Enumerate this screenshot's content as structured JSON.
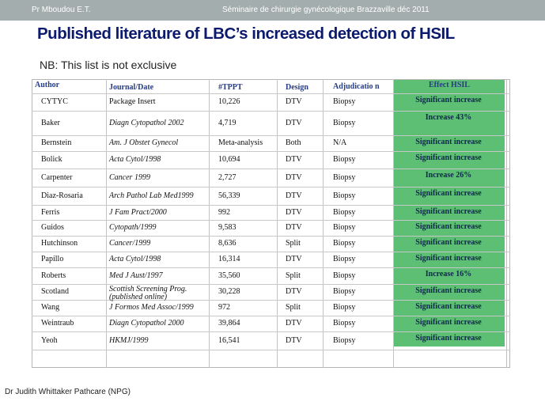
{
  "header": {
    "author": "Pr Mboudou  E.T.",
    "seminar": "Séminaire de chirurgie gynécologique Brazzaville déc 2011"
  },
  "title": "Published literature of LBC’s increased detection of HSIL",
  "note": "NB: This list is not exclusive",
  "footer": "Dr Judith Whittaker Pathcare (NPG)",
  "colors": {
    "header_bar": "#a4adad",
    "title": "#0c1a6e",
    "effect_column": "#5dbf73"
  },
  "table": {
    "headers": {
      "author": "Author",
      "journal": "Journal/Date",
      "tppt": "#TPPT",
      "design": "Design",
      "adjudication": "Adjudicatio n",
      "effect": "Effect HSIL"
    },
    "rows": [
      {
        "author": "CYTYC",
        "journal": "Package Insert",
        "tppt": "10,226",
        "design": "DTV",
        "adj": "Biopsy",
        "effect": "Significant   increase"
      },
      {
        "author": "Baker",
        "journal": "Diagn Cytopathol 2002",
        "tppt": "4,719",
        "design": "DTV",
        "adj": "Biopsy",
        "effect": "Increase 43%"
      },
      {
        "author": "Bernstein",
        "journal": "Am. J Obstet Gynecol",
        "tppt": "Meta-analysis",
        "design": "Both",
        "adj": "N/A",
        "effect": "Significant   increase"
      },
      {
        "author": "Bolick",
        "journal": "Acta Cytol/1998",
        "tppt": "10,694",
        "design": "DTV",
        "adj": "Biopsy",
        "effect": "Significant   increase"
      },
      {
        "author": "Carpenter",
        "journal": "Cancer 1999",
        "tppt": "2,727",
        "design": "DTV",
        "adj": "Biopsy",
        "effect": "Increase 26%"
      },
      {
        "author": "Diaz-Rosaria",
        "journal": "Arch Pathol Lab Med1999",
        "tppt": "56,339",
        "design": "DTV",
        "adj": "Biopsy",
        "effect": "Significant   increase"
      },
      {
        "author": "Ferris",
        "journal": "J Fam Pract/2000",
        "tppt": "992",
        "design": "DTV",
        "adj": "Biopsy",
        "effect": "Significant   increase"
      },
      {
        "author": "Guidos",
        "journal": "Cytopath/1999",
        "tppt": "9,583",
        "design": "DTV",
        "adj": "Biopsy",
        "effect": "Significant   increase"
      },
      {
        "author": "Hutchinson",
        "journal": "Cancer/1999",
        "tppt": "8,636",
        "design": "Split",
        "adj": "Biopsy",
        "effect": "Significant   increase"
      },
      {
        "author": "Papillo",
        "journal": "Acta Cytol/1998",
        "tppt": "16,314",
        "design": "DTV",
        "adj": "Biopsy",
        "effect": "Significant   increase"
      },
      {
        "author": "Roberts",
        "journal": "Med J Aust/1997",
        "tppt": "35,560",
        "design": "Split",
        "adj": "Biopsy",
        "effect": "Increase 16%"
      },
      {
        "author": "Scotland",
        "journal": "Scottish Screening Prog. (published online)",
        "tppt": "30,228",
        "design": "DTV",
        "adj": "Biopsy",
        "effect": "Significant   increase"
      },
      {
        "author": "Wang",
        "journal": "J Formos Med Assoc/1999",
        "tppt": "972",
        "design": "Split",
        "adj": "Biopsy",
        "effect": "Significant   increase"
      },
      {
        "author": "Weintraub",
        "journal": "Diagn Cytopathol 2000",
        "tppt": "39,864",
        "design": "DTV",
        "adj": "Biopsy",
        "effect": "Significant  increase"
      },
      {
        "author": "Yeoh",
        "journal": "HKMJ/1999",
        "tppt": "16,541",
        "design": "DTV",
        "adj": "Biopsy",
        "effect": "Significant  increase"
      }
    ]
  }
}
